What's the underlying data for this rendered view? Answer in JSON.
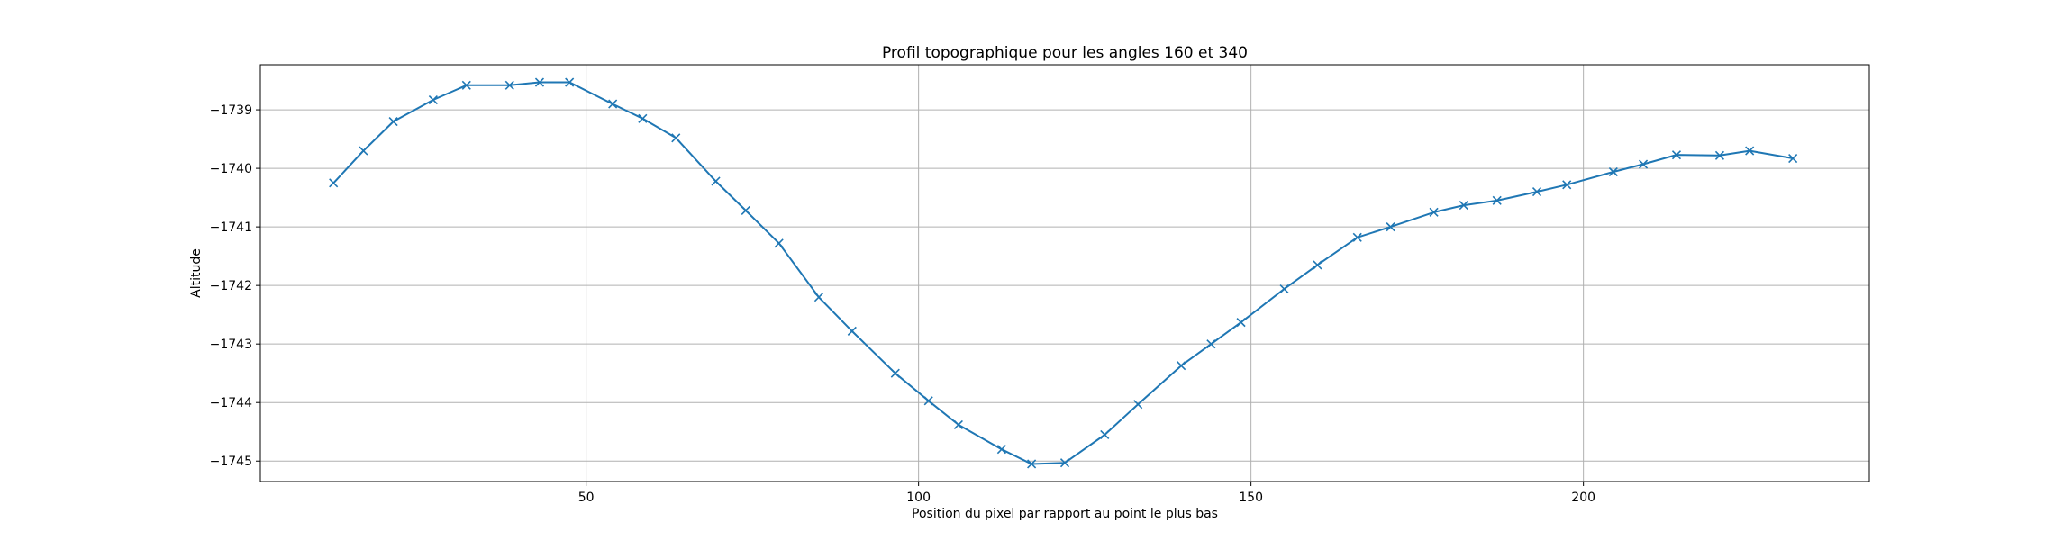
{
  "chart_data": {
    "type": "line",
    "title": "Profil topographique pour les angles 160 et 340",
    "xlabel": "Position du pixel par rapport au point le plus bas",
    "ylabel": "Altitude",
    "xlim": [
      1,
      243
    ],
    "ylim": [
      -1745.35,
      -1738.23
    ],
    "xticks": [
      50,
      100,
      150,
      200
    ],
    "yticks": [
      -1739,
      -1740,
      -1741,
      -1742,
      -1743,
      -1744,
      -1745
    ],
    "xtick_labels": [
      "50",
      "100",
      "150",
      "200"
    ],
    "ytick_labels": [
      "−1739",
      "−1740",
      "−1741",
      "−1742",
      "−1743",
      "−1744",
      "−1745"
    ],
    "grid": true,
    "marker": "x",
    "color": "#1f77b4",
    "series": [
      {
        "x": [
          12,
          16.5,
          21,
          27,
          32,
          38.5,
          43,
          47.5,
          54,
          58.5,
          63.5,
          69.5,
          74,
          79,
          85,
          90,
          96.5,
          101.5,
          106,
          112.5,
          117,
          122,
          128,
          133,
          139.5,
          144,
          148.5,
          155,
          160,
          166,
          171,
          177.5,
          182,
          187,
          193,
          197.5,
          204.5,
          209,
          214,
          220.5,
          225,
          231.5
        ],
        "y": [
          -1740.25,
          -1739.7,
          -1739.2,
          -1738.83,
          -1738.58,
          -1738.58,
          -1738.53,
          -1738.53,
          -1738.9,
          -1739.15,
          -1739.48,
          -1740.22,
          -1740.72,
          -1741.28,
          -1742.2,
          -1742.78,
          -1743.5,
          -1743.97,
          -1744.38,
          -1744.8,
          -1745.05,
          -1745.03,
          -1744.55,
          -1744.03,
          -1743.37,
          -1743.0,
          -1742.63,
          -1742.06,
          -1741.65,
          -1741.18,
          -1741.0,
          -1740.75,
          -1740.63,
          -1740.55,
          -1740.4,
          -1740.28,
          -1740.06,
          -1739.93,
          -1739.77,
          -1739.78,
          -1739.7,
          -1739.83
        ]
      }
    ]
  }
}
